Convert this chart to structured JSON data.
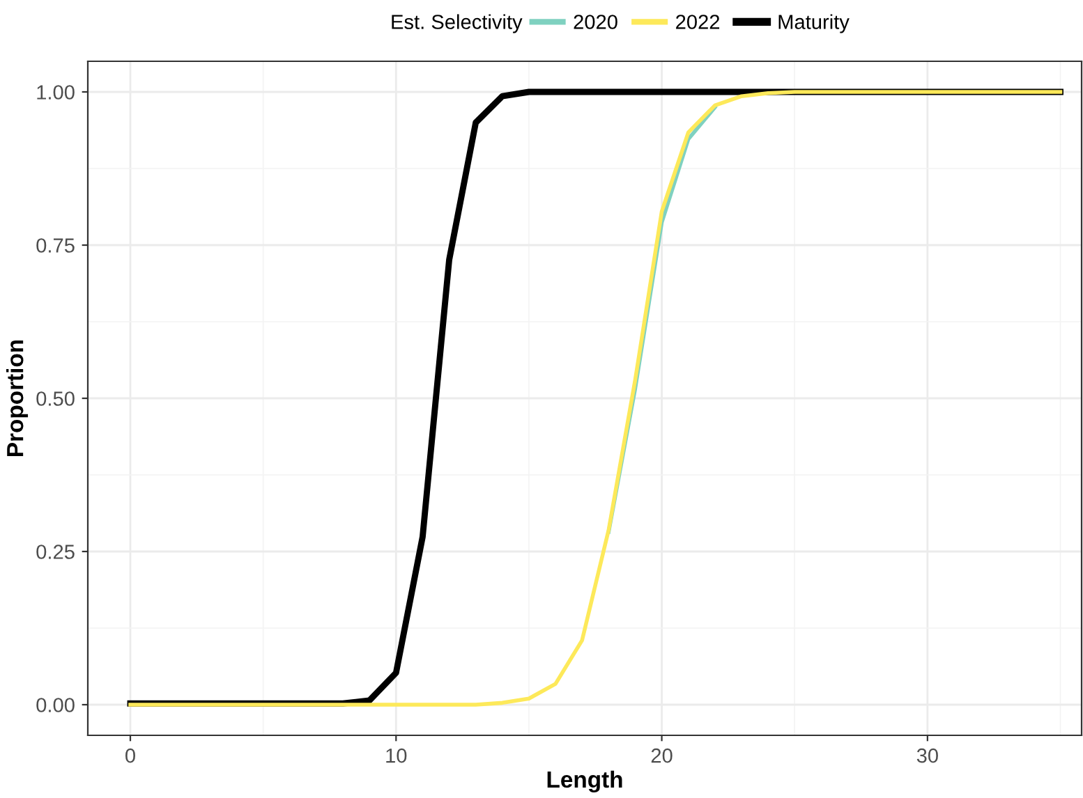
{
  "chart_data": {
    "type": "line",
    "xlabel": "Length",
    "ylabel": "Proportion",
    "legend_title": "Est. Selectivity",
    "legend": "top",
    "grid": true,
    "x": [
      0,
      1,
      2,
      3,
      4,
      5,
      6,
      7,
      8,
      9,
      10,
      11,
      12,
      13,
      14,
      15,
      16,
      17,
      18,
      19,
      20,
      21,
      22,
      23,
      24,
      25,
      26,
      27,
      28,
      29,
      30,
      31,
      32,
      33,
      34,
      35
    ],
    "xlim": [
      -1.6,
      35.8
    ],
    "ylim": [
      -0.05,
      1.05
    ],
    "xticks": [
      0,
      10,
      20,
      30
    ],
    "yticks": [
      {
        "value": 0,
        "label": "0.00"
      },
      {
        "value": 0.25,
        "label": "0.25"
      },
      {
        "value": 0.5,
        "label": "0.50"
      },
      {
        "value": 0.75,
        "label": "0.75"
      },
      {
        "value": 1,
        "label": "1.00"
      }
    ],
    "series": [
      {
        "name": "2020",
        "color": "#7fd1c0",
        "values": [
          null,
          null,
          null,
          null,
          null,
          null,
          null,
          null,
          null,
          null,
          null,
          null,
          null,
          null,
          null,
          null,
          null,
          null,
          0.282,
          0.516,
          0.787,
          0.923,
          0.975,
          null,
          null,
          null,
          null,
          null,
          null,
          null,
          null,
          null,
          null,
          null,
          null,
          null
        ]
      },
      {
        "name": "2022",
        "color": "#fde95a",
        "values": [
          0,
          0,
          0,
          0,
          0,
          0,
          0,
          0,
          0,
          0,
          0,
          0,
          0,
          0,
          0.003,
          0.01,
          0.034,
          0.105,
          0.285,
          0.53,
          0.805,
          0.934,
          0.978,
          0.993,
          0.998,
          1,
          1,
          1,
          1,
          1,
          1,
          1,
          1,
          1,
          1,
          1
        ]
      },
      {
        "name": "Maturity",
        "color": "#000000",
        "values": [
          0.002,
          0.002,
          0.002,
          0.002,
          0.002,
          0.002,
          0.002,
          0.002,
          0.002,
          0.007,
          0.052,
          0.274,
          0.726,
          0.95,
          0.993,
          1,
          1,
          1,
          1,
          1,
          1,
          1,
          1,
          1,
          1,
          1,
          1,
          1,
          1,
          1,
          1,
          1,
          1,
          1,
          1,
          1
        ]
      }
    ]
  }
}
